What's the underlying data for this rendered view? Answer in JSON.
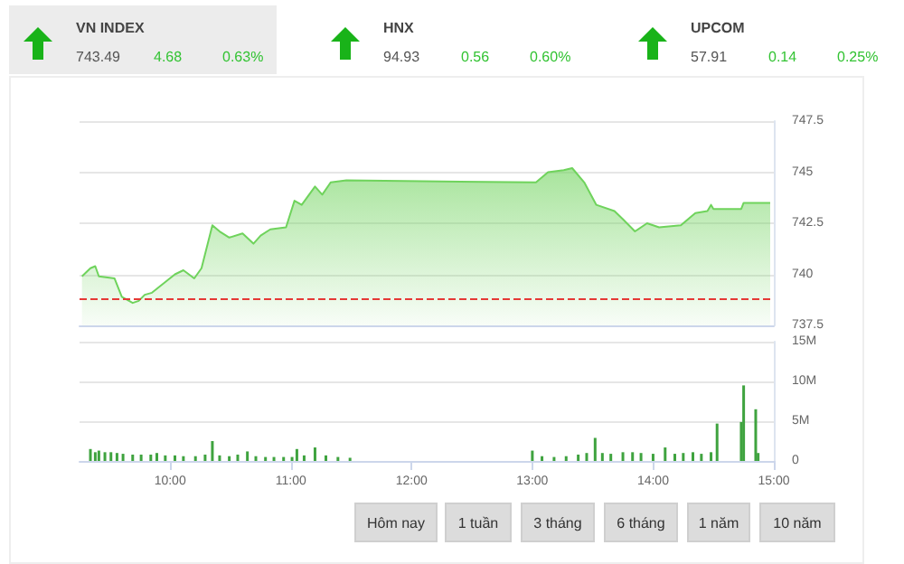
{
  "chart_data": [
    {
      "type": "other",
      "annotations": [
        "VN INDEX",
        "743.49",
        "4.68",
        "0.63%",
        "HNX",
        "94.93",
        "0.56",
        "0.60%",
        "UPCOM",
        "57.91",
        "0.14",
        "0.25%"
      ]
    },
    {
      "type": "area",
      "x": [
        9.27,
        9.34,
        9.38,
        9.41,
        9.54,
        9.6,
        9.69,
        9.74,
        9.79,
        9.85,
        10.04,
        10.11,
        10.2,
        10.26,
        10.35,
        10.41,
        10.49,
        10.6,
        10.69,
        10.75,
        10.83,
        10.96,
        11.03,
        11.09,
        11.2,
        11.26,
        11.33,
        11.46,
        13.03,
        13.13,
        13.26,
        13.33,
        13.43,
        13.53,
        13.68,
        13.75,
        13.85,
        13.95,
        14.05,
        14.23,
        14.35,
        14.45,
        14.48,
        14.5,
        14.73,
        14.75,
        14.97
      ],
      "series": [
        {
          "color": "#6fd35c",
          "values": [
            739.9,
            740.3,
            740.4,
            739.9,
            739.8,
            738.9,
            738.6,
            738.7,
            739.0,
            739.1,
            740.0,
            740.2,
            739.8,
            740.3,
            742.4,
            742.1,
            741.8,
            742.0,
            741.5,
            741.9,
            742.2,
            742.3,
            743.6,
            743.4,
            744.3,
            743.9,
            744.5,
            744.6,
            744.5,
            745.0,
            745.1,
            745.2,
            744.5,
            743.4,
            743.1,
            742.7,
            742.1,
            742.5,
            742.3,
            742.4,
            743.0,
            743.1,
            743.4,
            743.2,
            743.2,
            743.5,
            743.5
          ]
        }
      ],
      "xlim": [
        9.25,
        15
      ],
      "ylim": [
        737.5,
        747.5
      ],
      "yticks": [
        737.5,
        740,
        742.5,
        745,
        747.5
      ],
      "grid": "y",
      "tick_labels": "y",
      "ref_lines": [
        {
          "axis": "y",
          "value": 738.8,
          "color": "#e53935",
          "line_style": "dashed"
        }
      ]
    },
    {
      "type": "bar",
      "x": [
        9.34,
        9.38,
        9.41,
        9.46,
        9.51,
        9.56,
        9.61,
        9.69,
        9.76,
        9.84,
        9.89,
        9.96,
        10.04,
        10.11,
        10.21,
        10.29,
        10.35,
        10.41,
        10.49,
        10.56,
        10.64,
        10.71,
        10.79,
        10.86,
        10.94,
        11.01,
        11.05,
        11.11,
        11.2,
        11.29,
        11.39,
        11.49,
        13.0,
        13.08,
        13.18,
        13.28,
        13.38,
        13.45,
        13.52,
        13.58,
        13.65,
        13.75,
        13.83,
        13.9,
        14.0,
        14.1,
        14.18,
        14.25,
        14.33,
        14.4,
        14.48,
        14.53,
        14.73,
        14.75,
        14.85,
        14.87
      ],
      "values": [
        1500000,
        1100000,
        1300000,
        1100000,
        1100000,
        1000000,
        900000,
        800000,
        800000,
        800000,
        1000000,
        700000,
        700000,
        600000,
        600000,
        800000,
        2500000,
        700000,
        600000,
        800000,
        1200000,
        600000,
        500000,
        500000,
        500000,
        500000,
        1500000,
        700000,
        1700000,
        700000,
        500000,
        400000,
        1300000,
        600000,
        500000,
        600000,
        800000,
        1000000,
        2900000,
        1000000,
        900000,
        1100000,
        1100000,
        1000000,
        900000,
        1700000,
        900000,
        1000000,
        1100000,
        900000,
        1100000,
        4700000,
        4900000,
        9500000,
        6500000,
        1000000
      ],
      "color": "#3fa33f",
      "xlim": [
        9.25,
        15
      ],
      "xticks": [
        {
          "value": 10,
          "label": "10:00"
        },
        {
          "value": 11,
          "label": "11:00"
        },
        {
          "value": 12,
          "label": "12:00"
        },
        {
          "value": 13,
          "label": "13:00"
        },
        {
          "value": 14,
          "label": "14:00"
        },
        {
          "value": 15,
          "label": "15:00"
        }
      ],
      "ylim": [
        0,
        15000000
      ],
      "yticks": [
        {
          "value": 0,
          "label": "0"
        },
        {
          "value": 5000000,
          "label": "5M"
        },
        {
          "value": 10000000,
          "label": "10M"
        },
        {
          "value": 15000000,
          "label": "15M"
        }
      ],
      "grid": "y"
    },
    {
      "type": "other",
      "annotations": [
        "Hôm nay",
        "1 tuần",
        "3 tháng",
        "6 tháng",
        "1 năm",
        "10 năm"
      ]
    }
  ]
}
